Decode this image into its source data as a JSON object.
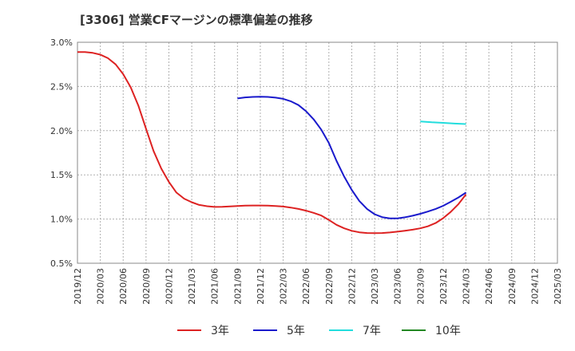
{
  "chart_data": {
    "type": "line",
    "title": "[3306]  営業CFマージンの標準偏差の推移",
    "xlabel": "",
    "ylabel": "",
    "ylim": [
      0.5,
      3.0
    ],
    "y_ticks": [
      "0.5%",
      "1.0%",
      "1.5%",
      "2.0%",
      "2.5%",
      "3.0%"
    ],
    "y_tick_values": [
      0.5,
      1.0,
      1.5,
      2.0,
      2.5,
      3.0
    ],
    "categories": [
      "2019/12",
      "2020/03",
      "2020/06",
      "2020/09",
      "2020/12",
      "2021/03",
      "2021/06",
      "2021/09",
      "2021/12",
      "2022/03",
      "2022/06",
      "2022/09",
      "2022/12",
      "2023/03",
      "2023/06",
      "2023/09",
      "2023/12",
      "2024/03",
      "2024/06",
      "2024/09",
      "2024/12",
      "2025/03"
    ],
    "grid": true,
    "legend_position": "bottom",
    "series": [
      {
        "name": "3年",
        "color": "#dd2222",
        "points": [
          [
            0,
            2.89
          ],
          [
            0.33,
            2.89
          ],
          [
            0.67,
            2.88
          ],
          [
            1,
            2.86
          ],
          [
            1.33,
            2.82
          ],
          [
            1.67,
            2.75
          ],
          [
            2,
            2.64
          ],
          [
            2.33,
            2.49
          ],
          [
            2.67,
            2.28
          ],
          [
            3,
            2.02
          ],
          [
            3.33,
            1.77
          ],
          [
            3.67,
            1.57
          ],
          [
            4,
            1.42
          ],
          [
            4.33,
            1.3
          ],
          [
            4.67,
            1.23
          ],
          [
            5,
            1.19
          ],
          [
            5.33,
            1.16
          ],
          [
            5.67,
            1.145
          ],
          [
            6,
            1.137
          ],
          [
            6.33,
            1.138
          ],
          [
            6.67,
            1.143
          ],
          [
            7,
            1.148
          ],
          [
            7.33,
            1.152
          ],
          [
            7.67,
            1.153
          ],
          [
            8,
            1.153
          ],
          [
            8.33,
            1.152
          ],
          [
            8.67,
            1.148
          ],
          [
            9,
            1.142
          ],
          [
            9.33,
            1.13
          ],
          [
            9.67,
            1.115
          ],
          [
            10,
            1.095
          ],
          [
            10.33,
            1.07
          ],
          [
            10.67,
            1.04
          ],
          [
            11,
            0.99
          ],
          [
            11.33,
            0.935
          ],
          [
            11.67,
            0.895
          ],
          [
            12,
            0.867
          ],
          [
            12.33,
            0.85
          ],
          [
            12.67,
            0.842
          ],
          [
            13,
            0.841
          ],
          [
            13.33,
            0.842
          ],
          [
            13.67,
            0.848
          ],
          [
            14,
            0.857
          ],
          [
            14.33,
            0.868
          ],
          [
            14.67,
            0.88
          ],
          [
            15,
            0.895
          ],
          [
            15.33,
            0.918
          ],
          [
            15.67,
            0.955
          ],
          [
            16,
            1.01
          ],
          [
            16.33,
            1.08
          ],
          [
            16.67,
            1.17
          ],
          [
            17,
            1.28
          ]
        ]
      },
      {
        "name": "5年",
        "color": "#1a1acc",
        "points": [
          [
            7,
            2.365
          ],
          [
            7.33,
            2.376
          ],
          [
            7.67,
            2.382
          ],
          [
            8,
            2.384
          ],
          [
            8.33,
            2.382
          ],
          [
            8.67,
            2.374
          ],
          [
            9,
            2.36
          ],
          [
            9.33,
            2.333
          ],
          [
            9.67,
            2.29
          ],
          [
            10,
            2.22
          ],
          [
            10.33,
            2.13
          ],
          [
            10.67,
            2.01
          ],
          [
            11,
            1.86
          ],
          [
            11.33,
            1.66
          ],
          [
            11.67,
            1.48
          ],
          [
            12,
            1.33
          ],
          [
            12.33,
            1.205
          ],
          [
            12.67,
            1.115
          ],
          [
            13,
            1.055
          ],
          [
            13.33,
            1.022
          ],
          [
            13.67,
            1.008
          ],
          [
            14,
            1.008
          ],
          [
            14.33,
            1.02
          ],
          [
            14.67,
            1.038
          ],
          [
            15,
            1.06
          ],
          [
            15.33,
            1.085
          ],
          [
            15.67,
            1.115
          ],
          [
            16,
            1.15
          ],
          [
            16.33,
            1.195
          ],
          [
            16.67,
            1.245
          ],
          [
            17,
            1.3
          ]
        ]
      },
      {
        "name": "7年",
        "color": "#22dddd",
        "points": [
          [
            15,
            2.105
          ],
          [
            15.5,
            2.095
          ],
          [
            16,
            2.088
          ],
          [
            16.5,
            2.08
          ],
          [
            17,
            2.075
          ]
        ]
      },
      {
        "name": "10年",
        "color": "#228822",
        "points": []
      }
    ]
  }
}
